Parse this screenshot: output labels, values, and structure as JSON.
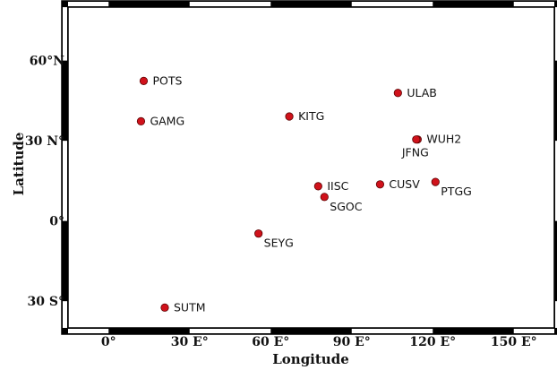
{
  "chart_data": {
    "type": "scatter",
    "title": "",
    "xlabel": "Longitude",
    "ylabel": "Latitude",
    "xlim": [
      -15,
      165
    ],
    "ylim": [
      -40,
      80
    ],
    "x_ticks": [
      {
        "value": 0,
        "label": "0°"
      },
      {
        "value": 30,
        "label": "30 E°"
      },
      {
        "value": 60,
        "label": "60 E°"
      },
      {
        "value": 90,
        "label": "90 E°"
      },
      {
        "value": 120,
        "label": "120 E°"
      },
      {
        "value": 150,
        "label": "150 E°"
      }
    ],
    "y_ticks": [
      {
        "value": 60,
        "label": "60°N"
      },
      {
        "value": 30,
        "label": "30 N°"
      },
      {
        "value": 0,
        "label": "0°"
      },
      {
        "value": -30,
        "label": "30 S°"
      }
    ],
    "grid": false,
    "frame": "black-white checkered border",
    "marker_color": "#d0121b",
    "points": [
      {
        "name": "POTS",
        "x": 13,
        "y": 52.4,
        "label_pos": "right"
      },
      {
        "name": "GAMG",
        "x": 12,
        "y": 37.3,
        "label_pos": "right"
      },
      {
        "name": "KITG",
        "x": 66.9,
        "y": 39.1,
        "label_pos": "right"
      },
      {
        "name": "ULAB",
        "x": 107.1,
        "y": 47.9,
        "label_pos": "right"
      },
      {
        "name": "WUH2",
        "x": 114.4,
        "y": 30.5,
        "label_pos": "right"
      },
      {
        "name": "JFNG",
        "x": 113.9,
        "y": 30.5,
        "label_pos": "below"
      },
      {
        "name": "IISC",
        "x": 77.6,
        "y": 13.0,
        "label_pos": "right"
      },
      {
        "name": "SGOC",
        "x": 79.9,
        "y": 9.0,
        "label_pos": "below-right"
      },
      {
        "name": "CUSV",
        "x": 100.5,
        "y": 13.7,
        "label_pos": "right"
      },
      {
        "name": "PTGG",
        "x": 121.0,
        "y": 14.6,
        "label_pos": "below-right"
      },
      {
        "name": "SEYG",
        "x": 55.5,
        "y": -4.7,
        "label_pos": "below-right"
      },
      {
        "name": "SUTM",
        "x": 20.8,
        "y": -32.4,
        "label_pos": "right"
      }
    ]
  }
}
